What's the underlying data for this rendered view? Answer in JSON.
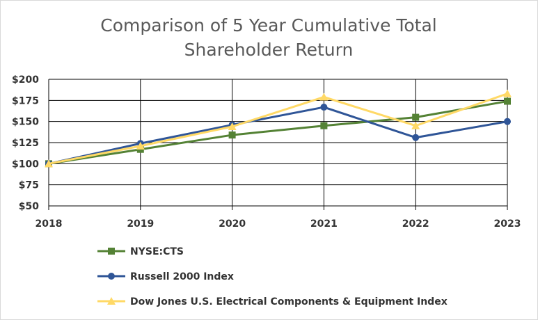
{
  "chart_data": {
    "type": "line",
    "title_lines": [
      "Comparison of 5 Year Cumulative Total",
      "Shareholder Return"
    ],
    "categories": [
      "2018",
      "2019",
      "2020",
      "2021",
      "2022",
      "2023"
    ],
    "ylim": [
      50,
      200
    ],
    "yticks": [
      50,
      75,
      100,
      125,
      150,
      175,
      200
    ],
    "ytick_labels": [
      "$50",
      "$75",
      "$100",
      "$125",
      "$150",
      "$175",
      "$200"
    ],
    "grid": true,
    "legend_position": "bottom",
    "series": [
      {
        "name": "NYSE:CTS",
        "color": "#548235",
        "marker": "square",
        "values": [
          100,
          117,
          134,
          145,
          155,
          174
        ]
      },
      {
        "name": "Russell 2000 Index",
        "color": "#2f5597",
        "marker": "circle",
        "values": [
          100,
          124,
          146,
          167,
          131,
          150
        ]
      },
      {
        "name": "Dow Jones U.S. Electrical Components & Equipment Index",
        "color": "#ffd966",
        "marker": "triangle",
        "values": [
          100,
          121,
          144,
          179,
          145,
          183
        ]
      }
    ]
  }
}
